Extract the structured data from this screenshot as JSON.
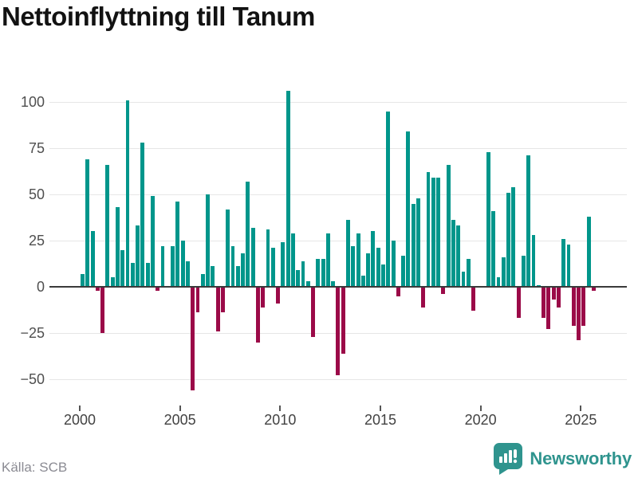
{
  "title": "Nettoinflyttning till Tanum",
  "footer": {
    "source": "Källa: SCB",
    "brand": "Newsworthy"
  },
  "colors": {
    "positive_bar": "#00968b",
    "negative_bar": "#9b0a48",
    "axis_line": "#3a3a3a",
    "gridline": "#e6e6e6",
    "tick_text": "#4f4f4f",
    "source_text": "#8b8b93",
    "brand_teal": "#2f948e",
    "title_text": "#121212",
    "background": "#ffffff"
  },
  "chart_data": {
    "type": "bar",
    "title": "Nettoinflyttning till Tanum",
    "frequency": "quarterly",
    "x_start": "2000Q1",
    "x_end": "2025Q3",
    "xlabel": "",
    "ylabel": "",
    "ylim": [
      -60,
      110
    ],
    "grid": true,
    "legend": false,
    "y_ticks": [
      100,
      75,
      50,
      25,
      0,
      -25,
      -50
    ],
    "y_tick_labels": [
      "100",
      "75",
      "50",
      "25",
      "0",
      "−25",
      "−50"
    ],
    "x_tick_years": [
      2000,
      2005,
      2010,
      2015,
      2020,
      2025
    ],
    "x_tick_labels": [
      "2000",
      "2005",
      "2010",
      "2015",
      "2020",
      "2025"
    ],
    "series_by_year": [
      {
        "year": 2000,
        "quarters": [
          7,
          69,
          30,
          -2
        ]
      },
      {
        "year": 2001,
        "quarters": [
          -25,
          66,
          5,
          43
        ]
      },
      {
        "year": 2002,
        "quarters": [
          20,
          101,
          13,
          33
        ]
      },
      {
        "year": 2003,
        "quarters": [
          78,
          13,
          49,
          -2
        ]
      },
      {
        "year": 2004,
        "quarters": [
          22,
          0,
          22,
          46
        ]
      },
      {
        "year": 2005,
        "quarters": [
          25,
          14,
          -56,
          -14
        ]
      },
      {
        "year": 2006,
        "quarters": [
          7,
          50,
          11,
          -24
        ]
      },
      {
        "year": 2007,
        "quarters": [
          -14,
          42,
          22,
          11
        ]
      },
      {
        "year": 2008,
        "quarters": [
          18,
          57,
          32,
          -30
        ]
      },
      {
        "year": 2009,
        "quarters": [
          -11,
          31,
          21,
          -9
        ]
      },
      {
        "year": 2010,
        "quarters": [
          24,
          106,
          29,
          9
        ]
      },
      {
        "year": 2011,
        "quarters": [
          14,
          3,
          -27,
          15
        ]
      },
      {
        "year": 2012,
        "quarters": [
          15,
          29,
          3,
          -48
        ]
      },
      {
        "year": 2013,
        "quarters": [
          -36,
          36,
          22,
          29
        ]
      },
      {
        "year": 2014,
        "quarters": [
          6,
          18,
          30,
          21
        ]
      },
      {
        "year": 2015,
        "quarters": [
          12,
          95,
          25,
          -5
        ]
      },
      {
        "year": 2016,
        "quarters": [
          17,
          84,
          45,
          48
        ]
      },
      {
        "year": 2017,
        "quarters": [
          -11,
          62,
          59,
          59
        ]
      },
      {
        "year": 2018,
        "quarters": [
          -4,
          66,
          36,
          33
        ]
      },
      {
        "year": 2019,
        "quarters": [
          8,
          15,
          -13,
          0
        ]
      },
      {
        "year": 2020,
        "quarters": [
          0,
          73,
          41,
          5
        ]
      },
      {
        "year": 2021,
        "quarters": [
          16,
          51,
          54,
          -17
        ]
      },
      {
        "year": 2022,
        "quarters": [
          17,
          71,
          28,
          1
        ]
      },
      {
        "year": 2023,
        "quarters": [
          -17,
          -23,
          -7,
          -11
        ]
      },
      {
        "year": 2024,
        "quarters": [
          26,
          23,
          -21,
          -29
        ]
      },
      {
        "year": 2025,
        "quarters": [
          -21,
          38,
          -2
        ]
      }
    ]
  }
}
